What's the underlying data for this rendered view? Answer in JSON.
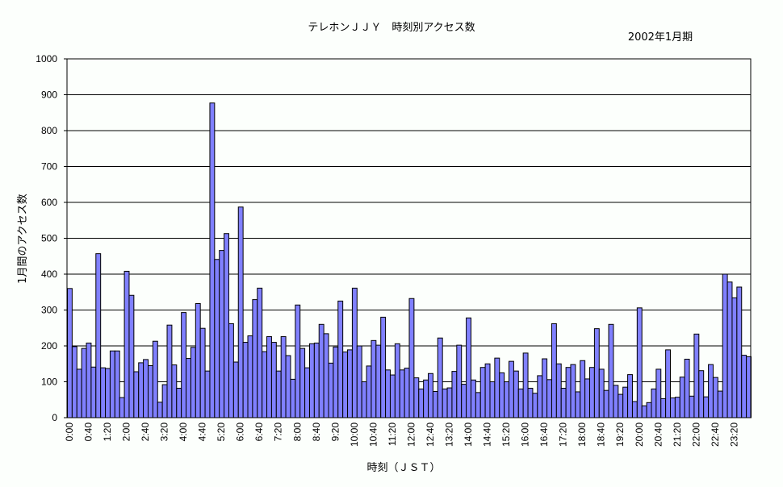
{
  "chart_data": {
    "type": "bar",
    "title": "テレホンＪＪＹ　時刻別アクセス数",
    "subtitle": "2002年1月期",
    "xlabel": "時刻（ＪＳＴ）",
    "ylabel": "1月間のアクセス数",
    "ylim": [
      0,
      1000
    ],
    "yticks": [
      0,
      100,
      200,
      300,
      400,
      500,
      600,
      700,
      800,
      900,
      1000
    ],
    "grid": true,
    "bar_color": "#8080ff",
    "xtick_labels": [
      "0:00",
      "0:40",
      "1:20",
      "2:00",
      "2:40",
      "3:20",
      "4:00",
      "4:40",
      "5:20",
      "6:00",
      "6:40",
      "7:20",
      "8:00",
      "8:40",
      "9:20",
      "10:00",
      "10:40",
      "11:20",
      "12:00",
      "12:40",
      "13:20",
      "14:00",
      "14:40",
      "15:20",
      "16:00",
      "16:40",
      "17:20",
      "18:00",
      "18:40",
      "19:20",
      "20:00",
      "20:40",
      "21:20",
      "22:00",
      "22:40",
      "23:20"
    ],
    "interval_minutes": 10,
    "values": [
      360,
      198,
      135,
      193,
      208,
      141,
      457,
      139,
      137,
      186,
      186,
      56,
      408,
      341,
      128,
      153,
      162,
      145,
      213,
      43,
      92,
      258,
      147,
      82,
      293,
      165,
      196,
      318,
      249,
      130,
      877,
      441,
      466,
      513,
      262,
      155,
      587,
      210,
      228,
      329,
      361,
      184,
      226,
      210,
      130,
      226,
      173,
      107,
      314,
      193,
      139,
      206,
      208,
      260,
      234,
      152,
      197,
      325,
      183,
      189,
      361,
      200,
      100,
      144,
      215,
      202,
      280,
      133,
      119,
      206,
      133,
      138,
      332,
      111,
      80,
      105,
      123,
      73,
      222,
      80,
      83,
      129,
      202,
      93,
      278,
      105,
      70,
      140,
      150,
      100,
      166,
      125,
      100,
      157,
      130,
      80,
      180,
      82,
      68,
      117,
      164,
      106,
      262,
      150,
      82,
      140,
      148,
      72,
      159,
      108,
      140,
      248,
      135,
      76,
      260,
      90,
      65,
      85,
      120,
      45,
      306,
      33,
      42,
      80,
      135,
      53,
      189,
      55,
      57,
      113,
      163,
      60,
      233,
      131,
      58,
      148,
      112,
      74,
      400,
      378,
      334,
      364,
      174,
      170
    ]
  }
}
